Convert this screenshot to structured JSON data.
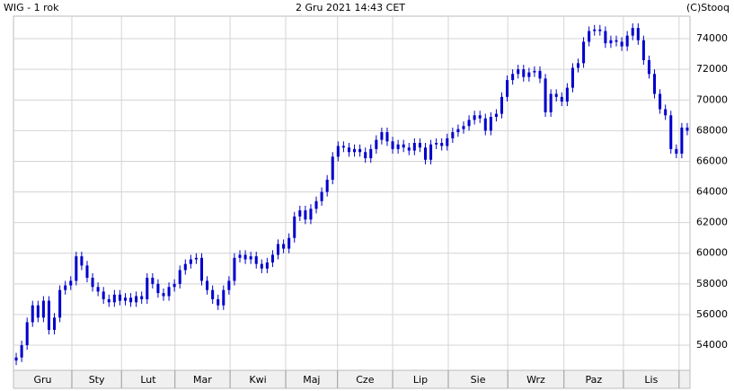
{
  "chart_data": {
    "type": "candlestick",
    "title": "WIG - 1 rok",
    "timestamp": "2 Gru 2021 14:43 CET",
    "source": "(C)Stooq",
    "color": "#0000cc",
    "grid": true,
    "x": [
      0,
      1,
      2,
      3,
      4,
      5,
      6,
      7,
      8,
      9,
      10,
      11,
      12,
      13,
      14,
      15,
      16,
      17,
      18,
      19,
      20,
      21,
      22,
      23,
      24,
      25,
      26,
      27,
      28,
      29,
      30,
      31,
      32,
      33,
      34,
      35,
      36,
      37,
      38,
      39,
      40,
      41,
      42,
      43,
      44,
      45,
      46,
      47,
      48,
      49,
      50,
      51,
      52,
      53,
      54,
      55,
      56,
      57,
      58,
      59,
      60,
      61,
      62,
      63,
      64,
      65,
      66,
      67,
      68,
      69,
      70,
      71,
      72,
      73,
      74,
      75,
      76,
      77,
      78,
      79,
      80,
      81,
      82,
      83,
      84,
      85,
      86,
      87,
      88,
      89,
      90,
      91,
      92,
      93,
      94,
      95,
      96,
      97,
      98,
      99,
      100,
      101,
      102,
      103,
      104,
      105,
      106,
      107,
      108,
      109,
      110,
      111,
      112,
      113,
      114,
      115,
      116,
      117,
      118,
      119,
      120,
      121,
      122,
      123
    ],
    "open": [
      53000,
      53200,
      54000,
      55500,
      56600,
      55800,
      56900,
      55000,
      55800,
      57600,
      57900,
      58200,
      59800,
      59200,
      58400,
      57800,
      57500,
      57000,
      56800,
      57300,
      56900,
      57100,
      56800,
      57200,
      57000,
      58400,
      58000,
      57400,
      57200,
      57800,
      58000,
      58900,
      59300,
      59600,
      59700,
      58200,
      57600,
      57000,
      56600,
      57600,
      58200,
      59700,
      59900,
      59600,
      59800,
      59300,
      59000,
      59400,
      59900,
      60600,
      60300,
      61000,
      62400,
      62800,
      62200,
      62900,
      63400,
      64000,
      64800,
      66300,
      67000,
      66900,
      66600,
      66800,
      66600,
      66200,
      66800,
      67400,
      67900,
      67300,
      66800,
      67100,
      66900,
      66700,
      67200,
      66900,
      66100,
      67100,
      67200,
      67000,
      67500,
      67900,
      68100,
      68300,
      68700,
      69000,
      68800,
      68000,
      68900,
      69100,
      70200,
      71300,
      71700,
      72000,
      71500,
      71800,
      71900,
      71400,
      69200,
      70400,
      70200,
      69900,
      70800,
      72100,
      72400,
      73800,
      74500,
      74600,
      74500,
      73700,
      73900,
      73800,
      73500,
      74200,
      74700,
      73900,
      72600,
      71700,
      70400,
      69400,
      69000,
      66800,
      66500,
      68200
    ],
    "high": [
      53500,
      54300,
      55800,
      56900,
      56900,
      57200,
      57200,
      56100,
      57900,
      58200,
      58500,
      60100,
      60100,
      59500,
      58700,
      58100,
      57800,
      57300,
      57600,
      57600,
      57400,
      57400,
      57500,
      57500,
      58700,
      58700,
      58300,
      57700,
      58100,
      58300,
      59200,
      59600,
      59900,
      60000,
      60000,
      58500,
      57900,
      57300,
      57900,
      58500,
      60000,
      60200,
      60200,
      60100,
      60100,
      59600,
      59700,
      60200,
      60900,
      60900,
      61300,
      62700,
      63100,
      63100,
      63200,
      63700,
      64300,
      65100,
      66600,
      67300,
      67300,
      67200,
      67100,
      67100,
      66900,
      67100,
      67700,
      68200,
      68200,
      67600,
      67400,
      67400,
      67200,
      67500,
      67500,
      67200,
      67400,
      67500,
      67500,
      67800,
      68200,
      68400,
      68600,
      69000,
      69300,
      69300,
      69100,
      69200,
      69400,
      70500,
      71600,
      72000,
      72300,
      72300,
      72100,
      72200,
      72200,
      71700,
      70700,
      70700,
      70500,
      71100,
      72400,
      72700,
      74100,
      74800,
      74900,
      74900,
      74800,
      74200,
      74200,
      74100,
      74500,
      75000,
      75000,
      74200,
      72900,
      72000,
      70700,
      69700,
      69300,
      67100,
      68500,
      68500
    ],
    "low": [
      52700,
      52900,
      53700,
      55200,
      55500,
      55500,
      54700,
      54700,
      55500,
      57300,
      57600,
      57900,
      58900,
      58100,
      57500,
      57200,
      56700,
      56500,
      56500,
      56600,
      56600,
      56500,
      56500,
      56700,
      56700,
      57700,
      57100,
      56900,
      56900,
      57500,
      57700,
      58600,
      59000,
      59300,
      57900,
      57300,
      56700,
      56300,
      56300,
      57300,
      57900,
      59400,
      59300,
      59300,
      59000,
      58700,
      58700,
      59100,
      59600,
      60000,
      60000,
      60700,
      62100,
      61900,
      61900,
      62600,
      63100,
      63700,
      64500,
      66000,
      66600,
      66300,
      66300,
      66300,
      65900,
      65900,
      66500,
      67100,
      67000,
      66500,
      66500,
      66600,
      66400,
      66400,
      66600,
      65800,
      65800,
      66800,
      66700,
      66700,
      67200,
      67600,
      67800,
      68000,
      68400,
      68500,
      67700,
      67700,
      68600,
      68800,
      69900,
      71000,
      71400,
      71200,
      71200,
      71500,
      71100,
      68900,
      68900,
      69900,
      69600,
      69600,
      70500,
      71800,
      72100,
      73500,
      74200,
      74200,
      73400,
      73400,
      73500,
      73200,
      73200,
      73900,
      73600,
      72300,
      71400,
      70100,
      69100,
      68700,
      66500,
      66200,
      66200,
      67700
    ],
    "close": [
      53200,
      54000,
      55500,
      56600,
      55800,
      56900,
      55000,
      55800,
      57600,
      57900,
      58200,
      59800,
      59200,
      58400,
      57800,
      57500,
      57000,
      56800,
      57300,
      56900,
      57100,
      56800,
      57200,
      57000,
      58400,
      58000,
      57400,
      57200,
      57800,
      58000,
      58900,
      59300,
      59600,
      59700,
      58200,
      57600,
      57000,
      56600,
      57600,
      58200,
      59700,
      59900,
      59600,
      59800,
      59300,
      59000,
      59400,
      59900,
      60600,
      60300,
      61000,
      62400,
      62800,
      62200,
      62900,
      63400,
      64000,
      64800,
      66300,
      67000,
      66900,
      66600,
      66800,
      66600,
      66200,
      66800,
      67400,
      67900,
      67300,
      66800,
      67100,
      66900,
      66700,
      67200,
      66900,
      66100,
      67100,
      67200,
      67000,
      67500,
      67900,
      68100,
      68300,
      68700,
      69000,
      68800,
      68000,
      68900,
      69100,
      70200,
      71300,
      71700,
      72000,
      71500,
      71800,
      71900,
      71400,
      69200,
      70400,
      70200,
      69900,
      70800,
      72100,
      72400,
      73800,
      74500,
      74600,
      74500,
      73700,
      73900,
      73800,
      73500,
      74200,
      74700,
      73900,
      72600,
      71700,
      70400,
      69400,
      69000,
      66800,
      66500,
      68200,
      68000
    ],
    "xlim": [
      -0.5,
      123.5
    ],
    "xgrid": [
      10.2,
      19.3,
      29.1,
      39.2,
      49.4,
      58.9,
      69.0,
      79.2,
      90.1,
      100.4,
      111.3,
      121.5
    ],
    "xticks": [
      {
        "value": 4.85,
        "label": "Gru"
      },
      {
        "value": 14.75,
        "label": "Sty"
      },
      {
        "value": 24.2,
        "label": "Lut"
      },
      {
        "value": 34.15,
        "label": "Mar"
      },
      {
        "value": 44.3,
        "label": "Kwi"
      },
      {
        "value": 54.15,
        "label": "Maj"
      },
      {
        "value": 63.95,
        "label": "Cze"
      },
      {
        "value": 74.1,
        "label": "Lip"
      },
      {
        "value": 84.65,
        "label": "Sie"
      },
      {
        "value": 95.25,
        "label": "Wrz"
      },
      {
        "value": 105.85,
        "label": "Paz"
      },
      {
        "value": 116.4,
        "label": "Lis"
      }
    ],
    "ylim": [
      52360,
      75470
    ],
    "yticks": [
      54000,
      56000,
      58000,
      60000,
      62000,
      64000,
      66000,
      68000,
      70000,
      72000,
      74000
    ]
  }
}
